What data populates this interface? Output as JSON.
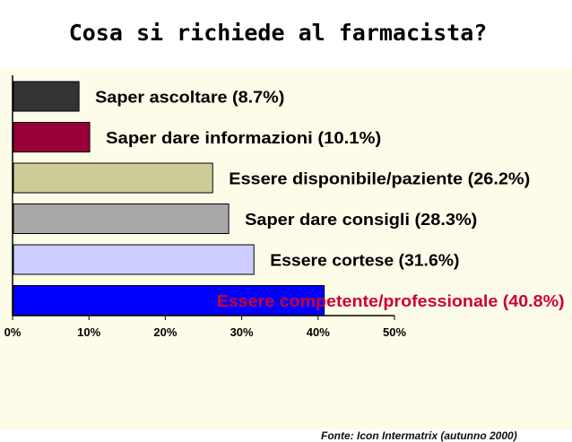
{
  "title": "Cosa si richiede al farmacista?",
  "source": "Fonte: Icon Intermatrix (autunno 2000)",
  "chart_data": {
    "type": "bar",
    "orientation": "horizontal",
    "title": "",
    "xlabel": "",
    "ylabel": "",
    "xlim": [
      0,
      50
    ],
    "x_ticks": [
      "0%",
      "10%",
      "20%",
      "30%",
      "40%",
      "50%"
    ],
    "grid": false,
    "legend": "none",
    "bars": [
      {
        "label": "Saper ascoltare (8.7%)",
        "value": 8.7,
        "color": "#333333",
        "label_color": "#000000"
      },
      {
        "label": "Saper dare informazioni  (10.1%)",
        "value": 10.1,
        "color": "#99003a",
        "label_color": "#000000"
      },
      {
        "label": "Essere disponibile/paziente (26.2%)",
        "value": 26.2,
        "color": "#cccc99",
        "label_color": "#000000"
      },
      {
        "label": "Saper dare consigli (28.3%)",
        "value": 28.3,
        "color": "#a8a8a8",
        "label_color": "#000000"
      },
      {
        "label": "Essere cortese (31.6%)",
        "value": 31.6,
        "color": "#ccccff",
        "label_color": "#000000"
      },
      {
        "label": "Essere competente/professionale (40.8%)",
        "value": 40.8,
        "color": "#0000ff",
        "label_color": "#cc0033"
      }
    ]
  }
}
